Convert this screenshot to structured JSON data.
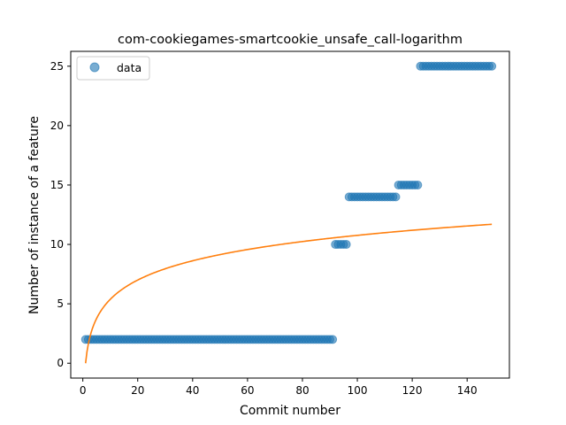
{
  "chart_data": {
    "type": "scatter",
    "title": "com-cookiegames-smartcookie_unsafe_call-logarithm",
    "xlabel": "Commit number",
    "ylabel": "Number of instance of a feature",
    "xlim": [
      -4.4,
      155.4
    ],
    "ylim": [
      -1.25,
      26.25
    ],
    "x_ticks": [
      0,
      20,
      40,
      60,
      80,
      100,
      120,
      140
    ],
    "y_ticks": [
      0,
      5,
      10,
      15,
      20,
      25
    ],
    "legend": {
      "position": "top-left",
      "entries": [
        "data"
      ]
    },
    "series": [
      {
        "name": "data",
        "kind": "scatter",
        "color": "#1f77b4",
        "segments": [
          {
            "x_from": 1,
            "x_to": 91,
            "y": 2
          },
          {
            "x_from": 92,
            "x_to": 96,
            "y": 10
          },
          {
            "x_from": 97,
            "x_to": 114,
            "y": 14
          },
          {
            "x_from": 115,
            "x_to": 122,
            "y": 15
          },
          {
            "x_from": 123,
            "x_to": 149,
            "y": 25
          }
        ]
      },
      {
        "kind": "line",
        "color": "#ff7f0e",
        "fit": "logarithmic",
        "x_range": [
          1,
          149
        ],
        "points": [
          [
            1,
            0
          ],
          [
            2,
            1.62
          ],
          [
            5,
            3.75
          ],
          [
            10,
            5.37
          ],
          [
            20,
            6.99
          ],
          [
            40,
            8.61
          ],
          [
            60,
            9.55
          ],
          [
            80,
            10.23
          ],
          [
            100,
            10.75
          ],
          [
            120,
            11.18
          ],
          [
            149,
            11.69
          ]
        ]
      }
    ]
  }
}
